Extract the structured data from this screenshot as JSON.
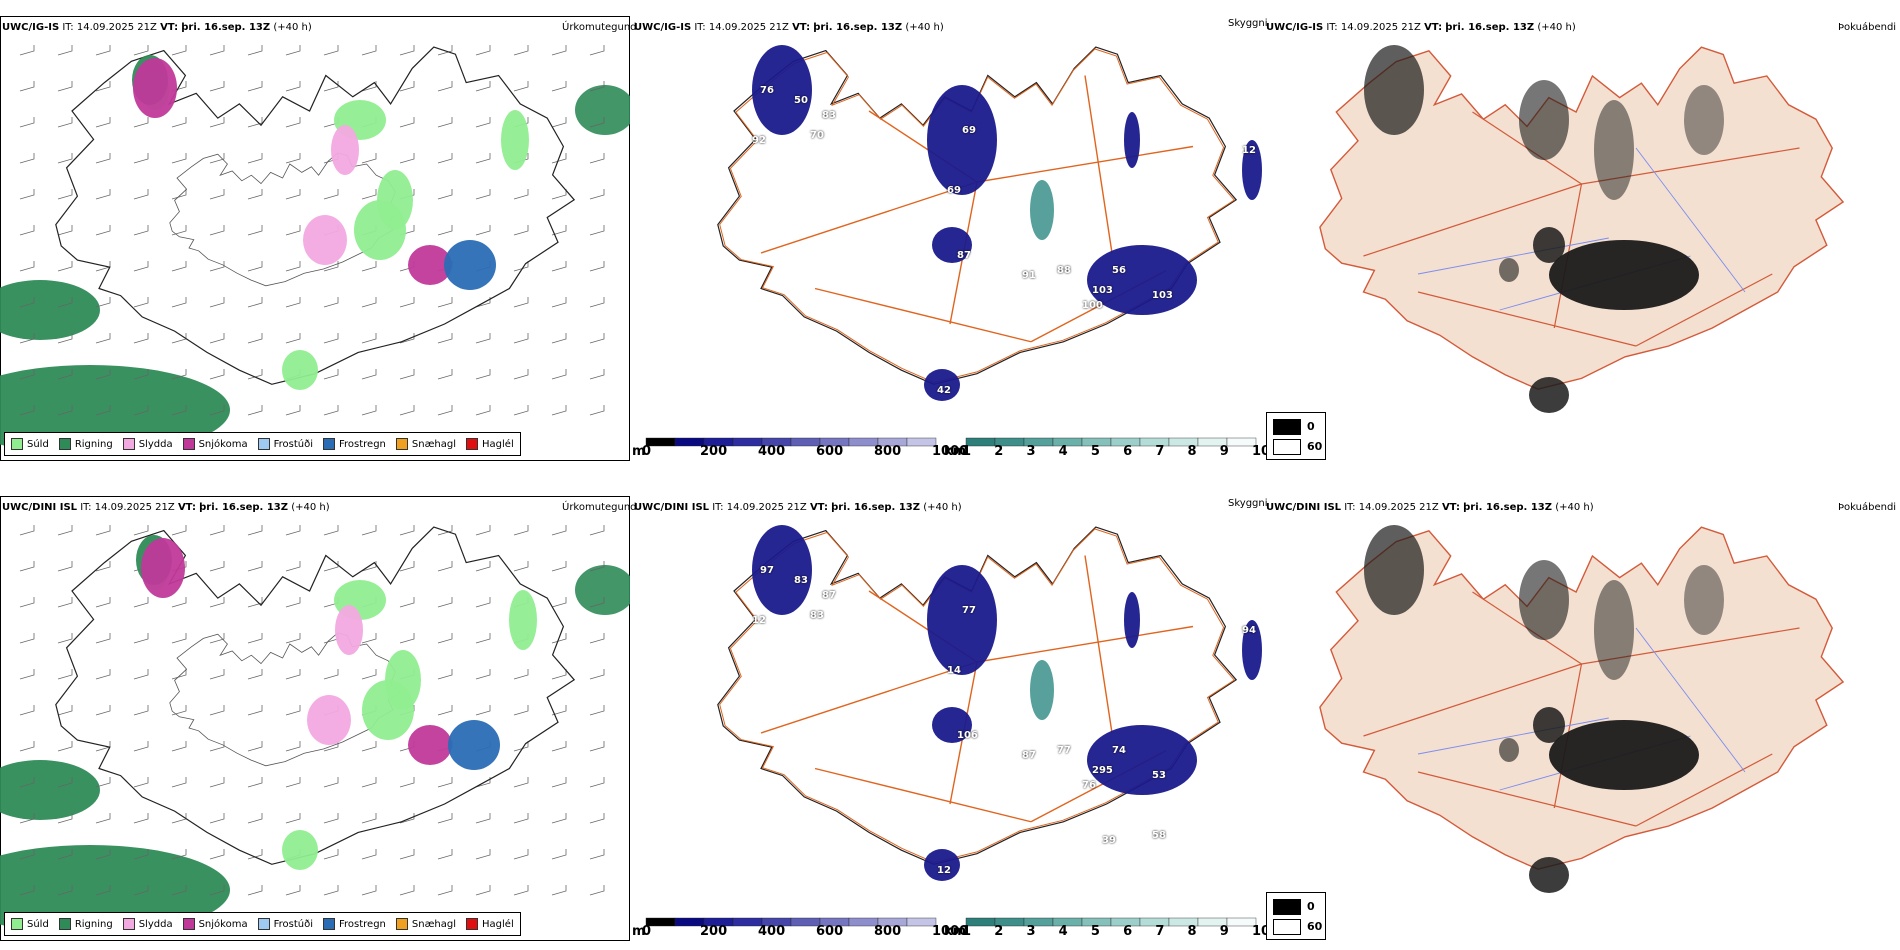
{
  "rows": [
    {
      "model": "UWC/IG-IS",
      "it_label": "IT:",
      "it_value": "14.09.2025 21Z",
      "vt_label": "VT:",
      "vt_value": "þri. 16.sep. 13Z",
      "lead": "(+40 h)",
      "precip_title": "Úrkomutegund",
      "cloud_title": "Skyggni",
      "fog_title": "Þokuábendi",
      "cloud_labels": [
        "76",
        "50",
        "92",
        "70",
        "83",
        "69",
        "69",
        "103",
        "87",
        "91",
        "88",
        "56",
        "103",
        "100",
        "42",
        "12"
      ]
    },
    {
      "model": "UWC/DINI ISL",
      "it_label": "IT:",
      "it_value": "14.09.2025 21Z",
      "vt_label": "VT:",
      "vt_value": "þri. 16.sep. 13Z",
      "lead": "(+40 h)",
      "precip_title": "Úrkomutegund",
      "cloud_title": "Skyggni",
      "fog_title": "Þokuábendi",
      "cloud_labels": [
        "97",
        "83",
        "12",
        "83",
        "87",
        "77",
        "14",
        "53",
        "106",
        "87",
        "77",
        "74",
        "295",
        "76",
        "12",
        "94",
        "58",
        "39"
      ]
    }
  ],
  "precip_legend": [
    {
      "label": "Súld",
      "color": "#90ee90"
    },
    {
      "label": "Rigning",
      "color": "#2e8b57"
    },
    {
      "label": "Slydda",
      "color": "#f2a9e0"
    },
    {
      "label": "Snjókoma",
      "color": "#c0399a"
    },
    {
      "label": "Frostúði",
      "color": "#9ec9f2"
    },
    {
      "label": "Frostregn",
      "color": "#2a6db5"
    },
    {
      "label": "Snæhagl",
      "color": "#f0a020"
    },
    {
      "label": "Haglél",
      "color": "#e01010"
    }
  ],
  "colorbar_m": {
    "unit": "m",
    "ticks": [
      "0",
      "200",
      "400",
      "600",
      "800",
      "1000"
    ]
  },
  "colorbar_km": {
    "unit": "km",
    "ticks": [
      "1",
      "2",
      "3",
      "4",
      "5",
      "6",
      "7",
      "8",
      "9",
      "10"
    ]
  },
  "fog_legend": {
    "max": "0",
    "min": "60"
  },
  "colors": {
    "land_fill": "#f3e0d0",
    "road": "#e0641e",
    "river": "#7c8cf0",
    "rain": "#2e8b57",
    "drizzle": "#90ee90",
    "cloud_low": "#1a1a8c",
    "cloud_mid": "#3a8f8a",
    "fog_dark": "#1a1a1a"
  }
}
